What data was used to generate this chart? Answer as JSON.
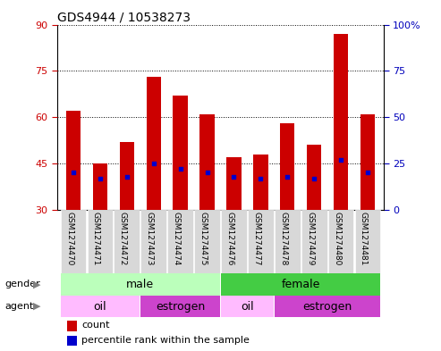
{
  "title": "GDS4944 / 10538273",
  "samples": [
    "GSM1274470",
    "GSM1274471",
    "GSM1274472",
    "GSM1274473",
    "GSM1274474",
    "GSM1274475",
    "GSM1274476",
    "GSM1274477",
    "GSM1274478",
    "GSM1274479",
    "GSM1274480",
    "GSM1274481"
  ],
  "counts": [
    62,
    45,
    52,
    73,
    67,
    61,
    47,
    48,
    58,
    51,
    87,
    61
  ],
  "percentile_ranks_pct": [
    20,
    17,
    18,
    25,
    22,
    20,
    18,
    17,
    18,
    17,
    27,
    20
  ],
  "bar_bottom": 30,
  "left_yticks": [
    30,
    45,
    60,
    75,
    90
  ],
  "right_yticks": [
    0,
    25,
    50,
    75,
    100
  ],
  "right_ytick_labels": [
    "0",
    "25",
    "50",
    "75",
    "100%"
  ],
  "ylim": [
    30,
    90
  ],
  "right_ylim": [
    0,
    100
  ],
  "bar_color": "#cc0000",
  "percentile_color": "#0000cc",
  "gender_colors": {
    "male": "#bbffbb",
    "female": "#44cc44"
  },
  "agent_colors": {
    "oil": "#ffbbff",
    "estrogen": "#cc44cc"
  },
  "tick_label_color_left": "#cc0000",
  "tick_label_color_right": "#0000bb",
  "bar_width": 0.55,
  "background_color": "#ffffff",
  "xtick_bg_color": "#d8d8d8",
  "legend_count_color": "#cc0000",
  "legend_pct_color": "#0000cc",
  "gender_spans": [
    {
      "label": "male",
      "start": 0,
      "end": 5
    },
    {
      "label": "female",
      "start": 6,
      "end": 11
    }
  ],
  "agent_spans": [
    {
      "label": "oil",
      "start": 0,
      "end": 2
    },
    {
      "label": "estrogen",
      "start": 3,
      "end": 5
    },
    {
      "label": "oil",
      "start": 6,
      "end": 7
    },
    {
      "label": "estrogen",
      "start": 8,
      "end": 11
    }
  ]
}
